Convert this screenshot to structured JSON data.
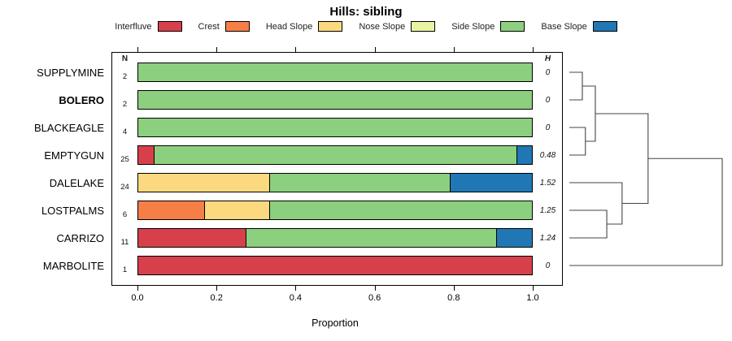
{
  "title": "Hills: sibling",
  "legend": {
    "items": [
      {
        "label": "Interfluve",
        "color": "#d7404b"
      },
      {
        "label": "Crest",
        "color": "#f57f47"
      },
      {
        "label": "Head Slope",
        "color": "#fad97f"
      },
      {
        "label": "Nose Slope",
        "color": "#e9f4a3"
      },
      {
        "label": "Side Slope",
        "color": "#8ccf7e"
      },
      {
        "label": "Base Slope",
        "color": "#2077b4"
      }
    ]
  },
  "chart_data": {
    "type": "bar",
    "variant": "horizontal-stacked",
    "title": "Hills: sibling",
    "xlabel": "Proportion",
    "xlim": [
      0,
      1
    ],
    "xticks": [
      "0.0",
      "0.2",
      "0.4",
      "0.6",
      "0.8",
      "1.0"
    ],
    "grid": false,
    "legend_position": "top",
    "column_headers": {
      "left": "N",
      "right": "H"
    },
    "categories": [
      "Interfluve",
      "Crest",
      "Head Slope",
      "Nose Slope",
      "Side Slope",
      "Base Slope"
    ],
    "rows": [
      {
        "label": "SUPPLYMINE",
        "bold": false,
        "n": "2",
        "h": "0",
        "segments": [
          {
            "category": "Side Slope",
            "value": 1.0
          }
        ]
      },
      {
        "label": "BOLERO",
        "bold": true,
        "n": "2",
        "h": "0",
        "segments": [
          {
            "category": "Side Slope",
            "value": 1.0
          }
        ]
      },
      {
        "label": "BLACKEAGLE",
        "bold": false,
        "n": "4",
        "h": "0",
        "segments": [
          {
            "category": "Side Slope",
            "value": 1.0
          }
        ]
      },
      {
        "label": "EMPTYGUN",
        "bold": false,
        "n": "25",
        "h": "0.48",
        "segments": [
          {
            "category": "Interfluve",
            "value": 0.04
          },
          {
            "category": "Side Slope",
            "value": 0.92
          },
          {
            "category": "Base Slope",
            "value": 0.04
          }
        ]
      },
      {
        "label": "DALELAKE",
        "bold": false,
        "n": "24",
        "h": "1.52",
        "segments": [
          {
            "category": "Head Slope",
            "value": 0.333
          },
          {
            "category": "Side Slope",
            "value": 0.459
          },
          {
            "category": "Base Slope",
            "value": 0.208
          }
        ]
      },
      {
        "label": "LOSTPALMS",
        "bold": false,
        "n": "6",
        "h": "1.25",
        "segments": [
          {
            "category": "Crest",
            "value": 0.167
          },
          {
            "category": "Head Slope",
            "value": 0.166
          },
          {
            "category": "Side Slope",
            "value": 0.667
          }
        ]
      },
      {
        "label": "CARRIZO",
        "bold": false,
        "n": "11",
        "h": "1.24",
        "segments": [
          {
            "category": "Interfluve",
            "value": 0.273
          },
          {
            "category": "Side Slope",
            "value": 0.636
          },
          {
            "category": "Base Slope",
            "value": 0.091
          }
        ]
      },
      {
        "label": "MARBOLITE",
        "bold": false,
        "n": "1",
        "h": "0",
        "segments": [
          {
            "category": "Interfluve",
            "value": 1.0
          }
        ]
      }
    ],
    "dendrogram": {
      "orientation": "right",
      "merges": [
        {
          "a": "L0",
          "b": "L1",
          "h": 0.085
        },
        {
          "a": "L2",
          "b": "L3",
          "h": 0.105
        },
        {
          "a": "M0",
          "b": "M1",
          "h": 0.17
        },
        {
          "a": "L5",
          "b": "L6",
          "h": 0.245
        },
        {
          "a": "L4",
          "b": "M3",
          "h": 0.345
        },
        {
          "a": "M2",
          "b": "M4",
          "h": 0.515
        },
        {
          "a": "M5",
          "b": "L7",
          "h": 1.0
        }
      ]
    }
  }
}
